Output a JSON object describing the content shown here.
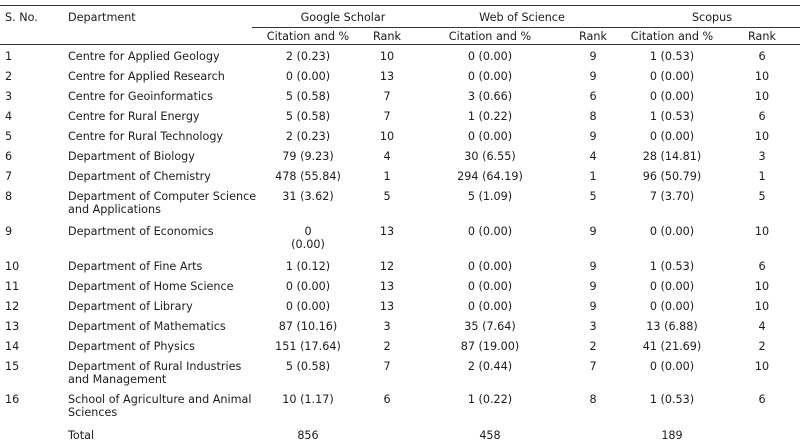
{
  "headers": {
    "sno": "S. No.",
    "department": "Department",
    "google_scholar": "Google Scholar",
    "web_of_science": "Web of Science",
    "scopus": "Scopus",
    "citation": "Citation and %",
    "rank": "Rank"
  },
  "rows": [
    {
      "sno": "1",
      "dept": [
        "Centre for Applied Geology"
      ],
      "gs": [
        "2 (0.23)"
      ],
      "gs_rank": "10",
      "wos": "0 (0.00)",
      "wos_rank": "9",
      "sc": "1 (0.53)",
      "sc_rank": "6"
    },
    {
      "sno": "2",
      "dept": [
        "Centre for Applied Research"
      ],
      "gs": [
        "0 (0.00)"
      ],
      "gs_rank": "13",
      "wos": "0 (0.00)",
      "wos_rank": "9",
      "sc": "0 (0.00)",
      "sc_rank": "10"
    },
    {
      "sno": "3",
      "dept": [
        "Centre for Geoinformatics"
      ],
      "gs": [
        "5 (0.58)"
      ],
      "gs_rank": "7",
      "wos": "3 (0.66)",
      "wos_rank": "6",
      "sc": "0 (0.00)",
      "sc_rank": "10"
    },
    {
      "sno": "4",
      "dept": [
        "Centre for Rural Energy"
      ],
      "gs": [
        "5 (0.58)"
      ],
      "gs_rank": "7",
      "wos": "1 (0.22)",
      "wos_rank": "8",
      "sc": "1 (0.53)",
      "sc_rank": "6"
    },
    {
      "sno": "5",
      "dept": [
        "Centre for Rural Technology"
      ],
      "gs": [
        "2 (0.23)"
      ],
      "gs_rank": "10",
      "wos": "0 (0.00)",
      "wos_rank": "9",
      "sc": "0 (0.00)",
      "sc_rank": "10"
    },
    {
      "sno": "6",
      "dept": [
        "Department of Biology"
      ],
      "gs": [
        "79 (9.23)"
      ],
      "gs_rank": "4",
      "wos": "30 (6.55)",
      "wos_rank": "4",
      "sc": "28 (14.81)",
      "sc_rank": "3"
    },
    {
      "sno": "7",
      "dept": [
        "Department of Chemistry"
      ],
      "gs": [
        "478 (55.84)"
      ],
      "gs_rank": "1",
      "wos": "294 (64.19)",
      "wos_rank": "1",
      "sc": "96 (50.79)",
      "sc_rank": "1"
    },
    {
      "sno": "8",
      "dept": [
        "Department of Computer Science",
        "and Applications"
      ],
      "gs": [
        "31 (3.62)"
      ],
      "gs_rank": "5",
      "wos": "5 (1.09)",
      "wos_rank": "5",
      "sc": "7 (3.70)",
      "sc_rank": "5"
    },
    {
      "sno": "9",
      "dept": [
        "Department of Economics"
      ],
      "gs": [
        "0",
        "(0.00)"
      ],
      "gs_rank": "13",
      "wos": "0 (0.00)",
      "wos_rank": "9",
      "sc": "0 (0.00)",
      "sc_rank": "10"
    },
    {
      "sno": "10",
      "dept": [
        "Department of Fine Arts"
      ],
      "gs": [
        "1 (0.12)"
      ],
      "gs_rank": "12",
      "wos": "0 (0.00)",
      "wos_rank": "9",
      "sc": "1 (0.53)",
      "sc_rank": "6"
    },
    {
      "sno": "11",
      "dept": [
        "Department of Home Science"
      ],
      "gs": [
        "0 (0.00)"
      ],
      "gs_rank": "13",
      "wos": "0 (0.00)",
      "wos_rank": "9",
      "sc": "0 (0.00)",
      "sc_rank": "10"
    },
    {
      "sno": "12",
      "dept": [
        "Department of Library"
      ],
      "gs": [
        "0 (0.00)"
      ],
      "gs_rank": "13",
      "wos": "0 (0.00)",
      "wos_rank": "9",
      "sc": "0 (0.00)",
      "sc_rank": "10"
    },
    {
      "sno": "13",
      "dept": [
        "Department of Mathematics"
      ],
      "gs": [
        "87 (10.16)"
      ],
      "gs_rank": "3",
      "wos": "35 (7.64)",
      "wos_rank": "3",
      "sc": "13 (6.88)",
      "sc_rank": "4"
    },
    {
      "sno": "14",
      "dept": [
        "Department of Physics"
      ],
      "gs": [
        "151 (17.64)"
      ],
      "gs_rank": "2",
      "wos": "87 (19.00)",
      "wos_rank": "2",
      "sc": "41 (21.69)",
      "sc_rank": "2"
    },
    {
      "sno": "15",
      "dept": [
        "Department of Rural Industries",
        "and Management"
      ],
      "gs": [
        "5 (0.58)"
      ],
      "gs_rank": "7",
      "wos": "2 (0.44)",
      "wos_rank": "7",
      "sc": "0 (0.00)",
      "sc_rank": "10"
    },
    {
      "sno": "16",
      "dept": [
        "School of Agriculture and Animal",
        "Sciences"
      ],
      "gs": [
        "10 (1.17)"
      ],
      "gs_rank": "6",
      "wos": "1 (0.22)",
      "wos_rank": "8",
      "sc": "1 (0.53)",
      "sc_rank": "6"
    }
  ],
  "total": {
    "label": "Total",
    "gs": "856",
    "wos": "458",
    "sc": "189"
  }
}
